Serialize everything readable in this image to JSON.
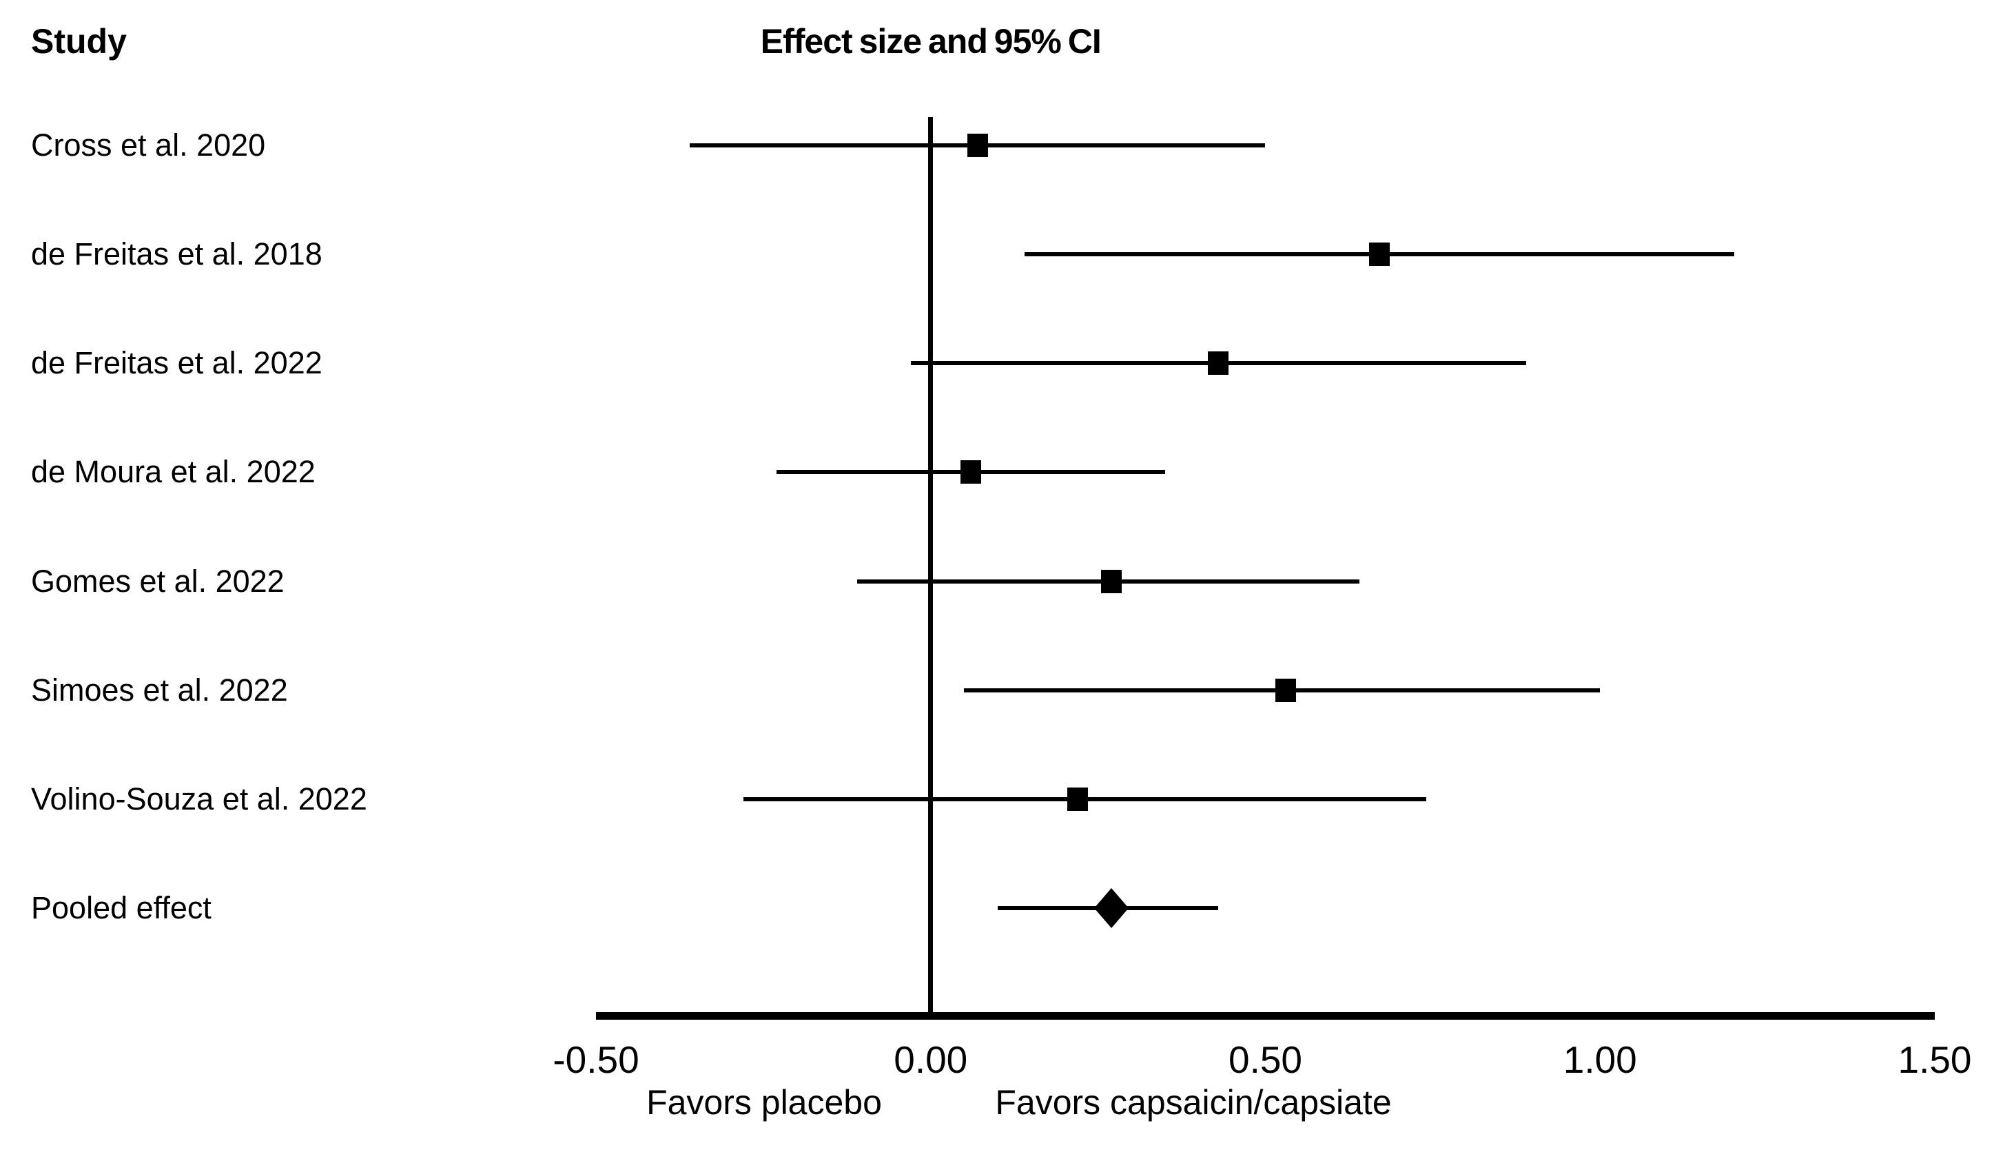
{
  "figure": {
    "background_color": "#ffffff",
    "ink_color": "#000000"
  },
  "chart_data": {
    "type": "forest",
    "column_header_left": "Study",
    "column_header_right": "Effect size and 95% CI",
    "xlim": [
      -0.5,
      1.5
    ],
    "grid": false,
    "ticks": [
      {
        "label": "-0.50",
        "value": -0.5
      },
      {
        "label": "0.00",
        "value": 0.0
      },
      {
        "label": "0.50",
        "value": 0.5
      },
      {
        "label": "1.00",
        "value": 1.0
      },
      {
        "label": "1.50",
        "value": 1.5
      }
    ],
    "axis_annotations": {
      "left": "Favors placebo",
      "right": "Favors capsaicin/capsiate"
    },
    "zero_reference_line": 0.0,
    "studies": [
      {
        "label": "Cross et al. 2020",
        "es": 0.07,
        "lo": -0.36,
        "hi": 0.5,
        "marker": "square"
      },
      {
        "label": "de Freitas et al. 2018",
        "es": 0.67,
        "lo": 0.14,
        "hi": 1.2,
        "marker": "square"
      },
      {
        "label": "de Freitas et al. 2022",
        "es": 0.43,
        "lo": -0.03,
        "hi": 0.89,
        "marker": "square"
      },
      {
        "label": "de Moura et al. 2022",
        "es": 0.06,
        "lo": -0.23,
        "hi": 0.35,
        "marker": "square"
      },
      {
        "label": "Gomes et al. 2022",
        "es": 0.27,
        "lo": -0.11,
        "hi": 0.64,
        "marker": "square"
      },
      {
        "label": "Simoes et al. 2022",
        "es": 0.53,
        "lo": 0.05,
        "hi": 1.0,
        "marker": "square"
      },
      {
        "label": "Volino-Souza et al. 2022",
        "es": 0.22,
        "lo": -0.28,
        "hi": 0.74,
        "marker": "square"
      },
      {
        "label": "Pooled effect",
        "es": 0.27,
        "lo": 0.1,
        "hi": 0.43,
        "marker": "diamond"
      }
    ]
  }
}
